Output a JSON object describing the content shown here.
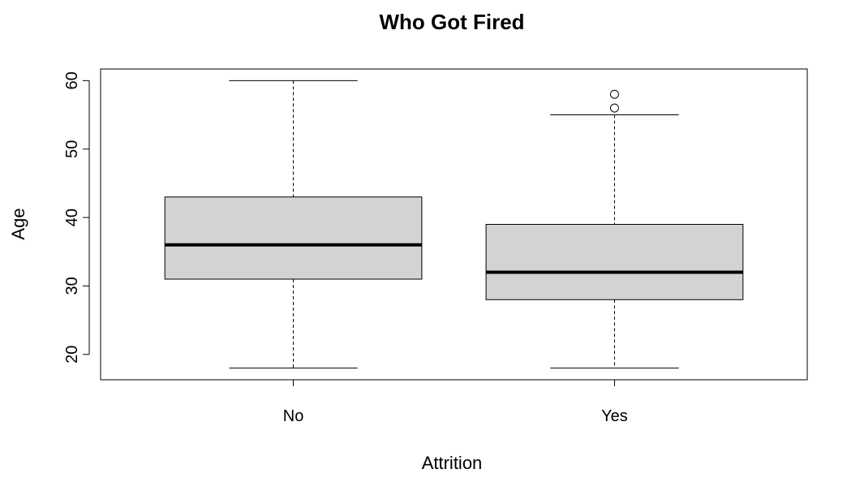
{
  "chart_data": {
    "type": "boxplot",
    "title": "Who Got Fired",
    "xlabel": "Attrition",
    "ylabel": "Age",
    "categories": [
      "No",
      "Yes"
    ],
    "ylim": [
      16.3,
      61.7
    ],
    "yticks": [
      20,
      30,
      40,
      50,
      60
    ],
    "box_fill": "#d3d3d3",
    "boxes": [
      {
        "category": "No",
        "min": 18,
        "q1": 31,
        "median": 36,
        "q3": 43,
        "max": 60,
        "outliers": []
      },
      {
        "category": "Yes",
        "min": 18,
        "q1": 28,
        "median": 32,
        "q3": 39,
        "max": 55,
        "outliers": [
          56,
          58
        ]
      }
    ],
    "grid": false,
    "legend": "none"
  }
}
